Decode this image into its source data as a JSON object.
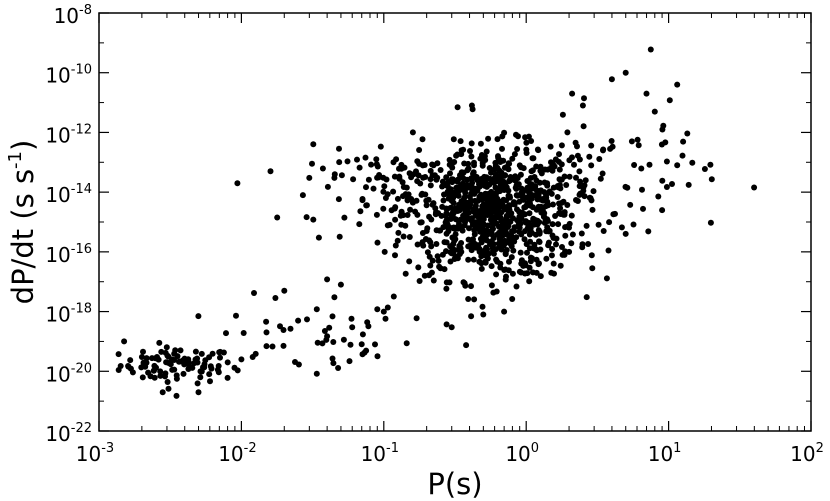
{
  "chart_data": {
    "type": "scatter",
    "xlabel": "P(s)",
    "ylabel_main": "dP/dt (s s",
    "ylabel_sup": "-1",
    "ylabel_close": ")",
    "x_scale": "log",
    "y_scale": "log",
    "xlim": [
      0.001,
      100
    ],
    "ylim": [
      1e-22,
      1e-08
    ],
    "grid": false,
    "legend": "none",
    "marker_color": "#000000",
    "x_ticks": [
      {
        "base": "10",
        "exp": "-3",
        "value": 0.001
      },
      {
        "base": "10",
        "exp": "-2",
        "value": 0.01
      },
      {
        "base": "10",
        "exp": "-1",
        "value": 0.1
      },
      {
        "base": "10",
        "exp": "0",
        "value": 1
      },
      {
        "base": "10",
        "exp": "1",
        "value": 10
      },
      {
        "base": "10",
        "exp": "2",
        "value": 100
      }
    ],
    "y_ticks": [
      {
        "base": "10",
        "exp": "-22",
        "value": 1e-22
      },
      {
        "base": "10",
        "exp": "-20",
        "value": 1e-20
      },
      {
        "base": "10",
        "exp": "-18",
        "value": 1e-18
      },
      {
        "base": "10",
        "exp": "-16",
        "value": 1e-16
      },
      {
        "base": "10",
        "exp": "-14",
        "value": 1e-14
      },
      {
        "base": "10",
        "exp": "-12",
        "value": 1e-12
      },
      {
        "base": "10",
        "exp": "-10",
        "value": 1e-10
      },
      {
        "base": "10",
        "exp": "-8",
        "value": 1e-08
      }
    ],
    "clusters": [
      {
        "x_log_center": -2.45,
        "y_log_center": -19.8,
        "x_log_spread": 0.2,
        "y_log_spread": 0.3,
        "count": 90
      },
      {
        "x_log_center": -1.5,
        "y_log_center": -18.9,
        "x_log_spread": 0.35,
        "y_log_spread": 0.7,
        "count": 45
      },
      {
        "x_log_center": -0.25,
        "y_log_center": -14.7,
        "x_log_spread": 0.3,
        "y_log_spread": 1.1,
        "count": 900
      },
      {
        "x_log_center": -0.9,
        "y_log_center": -13.8,
        "x_log_spread": 0.3,
        "y_log_spread": 0.6,
        "count": 70
      },
      {
        "x_log_center": 0.5,
        "y_log_center": -13.5,
        "x_log_spread": 0.4,
        "y_log_spread": 1.1,
        "count": 90
      }
    ],
    "points": [
      {
        "x": 7.5,
        "y": 6e-10
      },
      {
        "x": 5.0,
        "y": 1e-10
      },
      {
        "x": 4.0,
        "y": 6e-11
      },
      {
        "x": 11.5,
        "y": 4e-11
      },
      {
        "x": 2.1,
        "y": 2e-11
      },
      {
        "x": 7.0,
        "y": 2e-11
      },
      {
        "x": 10.2,
        "y": 1.2e-11
      },
      {
        "x": 2.5,
        "y": 8e-12
      },
      {
        "x": 8.0,
        "y": 5e-12
      },
      {
        "x": 0.33,
        "y": 7e-12
      },
      {
        "x": 0.42,
        "y": 6e-12
      },
      {
        "x": 0.16,
        "y": 1e-12
      },
      {
        "x": 0.032,
        "y": 4e-13
      },
      {
        "x": 0.016,
        "y": 5e-14
      },
      {
        "x": 0.045,
        "y": 3e-14
      },
      {
        "x": 0.03,
        "y": 3e-14
      },
      {
        "x": 0.035,
        "y": 3e-16
      },
      {
        "x": 0.032,
        "y": 1.2e-15
      },
      {
        "x": 9.0,
        "y": 2.5e-15
      },
      {
        "x": 11.5,
        "y": 8e-14
      },
      {
        "x": 0.2,
        "y": 5e-16
      },
      {
        "x": 0.1,
        "y": 1e-18
      },
      {
        "x": 0.09,
        "y": 1.2e-18
      },
      {
        "x": 0.17,
        "y": 6e-19
      },
      {
        "x": 0.3,
        "y": 3e-19
      },
      {
        "x": 0.7,
        "y": 1e-18
      },
      {
        "x": 0.5,
        "y": 8e-19
      },
      {
        "x": 0.0015,
        "y": 1e-19
      },
      {
        "x": 0.0016,
        "y": 1.5e-20
      },
      {
        "x": 0.002,
        "y": 3e-20
      },
      {
        "x": 0.0035,
        "y": 1.5e-21
      },
      {
        "x": 0.0028,
        "y": 2e-21
      },
      {
        "x": 0.005,
        "y": 2e-21
      },
      {
        "x": 0.008,
        "y": 6e-21
      },
      {
        "x": 0.012,
        "y": 3e-20
      },
      {
        "x": 0.01,
        "y": 2.5e-20
      },
      {
        "x": 0.015,
        "y": 7e-20
      },
      {
        "x": 0.02,
        "y": 5e-18
      },
      {
        "x": 0.015,
        "y": 2e-19
      },
      {
        "x": 0.025,
        "y": 5e-19
      },
      {
        "x": 0.04,
        "y": 1.5e-19
      },
      {
        "x": 0.05,
        "y": 8e-18
      },
      {
        "x": 0.06,
        "y": 3e-19
      },
      {
        "x": 0.07,
        "y": 8e-20
      },
      {
        "x": 0.04,
        "y": 1.2e-17
      },
      {
        "x": 0.045,
        "y": 3e-18
      },
      {
        "x": 0.11,
        "y": 8e-16
      },
      {
        "x": 2.0,
        "y": 1e-16
      },
      {
        "x": 3.5,
        "y": 5e-16
      },
      {
        "x": 5.0,
        "y": 4e-16
      },
      {
        "x": 1.5,
        "y": 2e-17
      }
    ]
  }
}
